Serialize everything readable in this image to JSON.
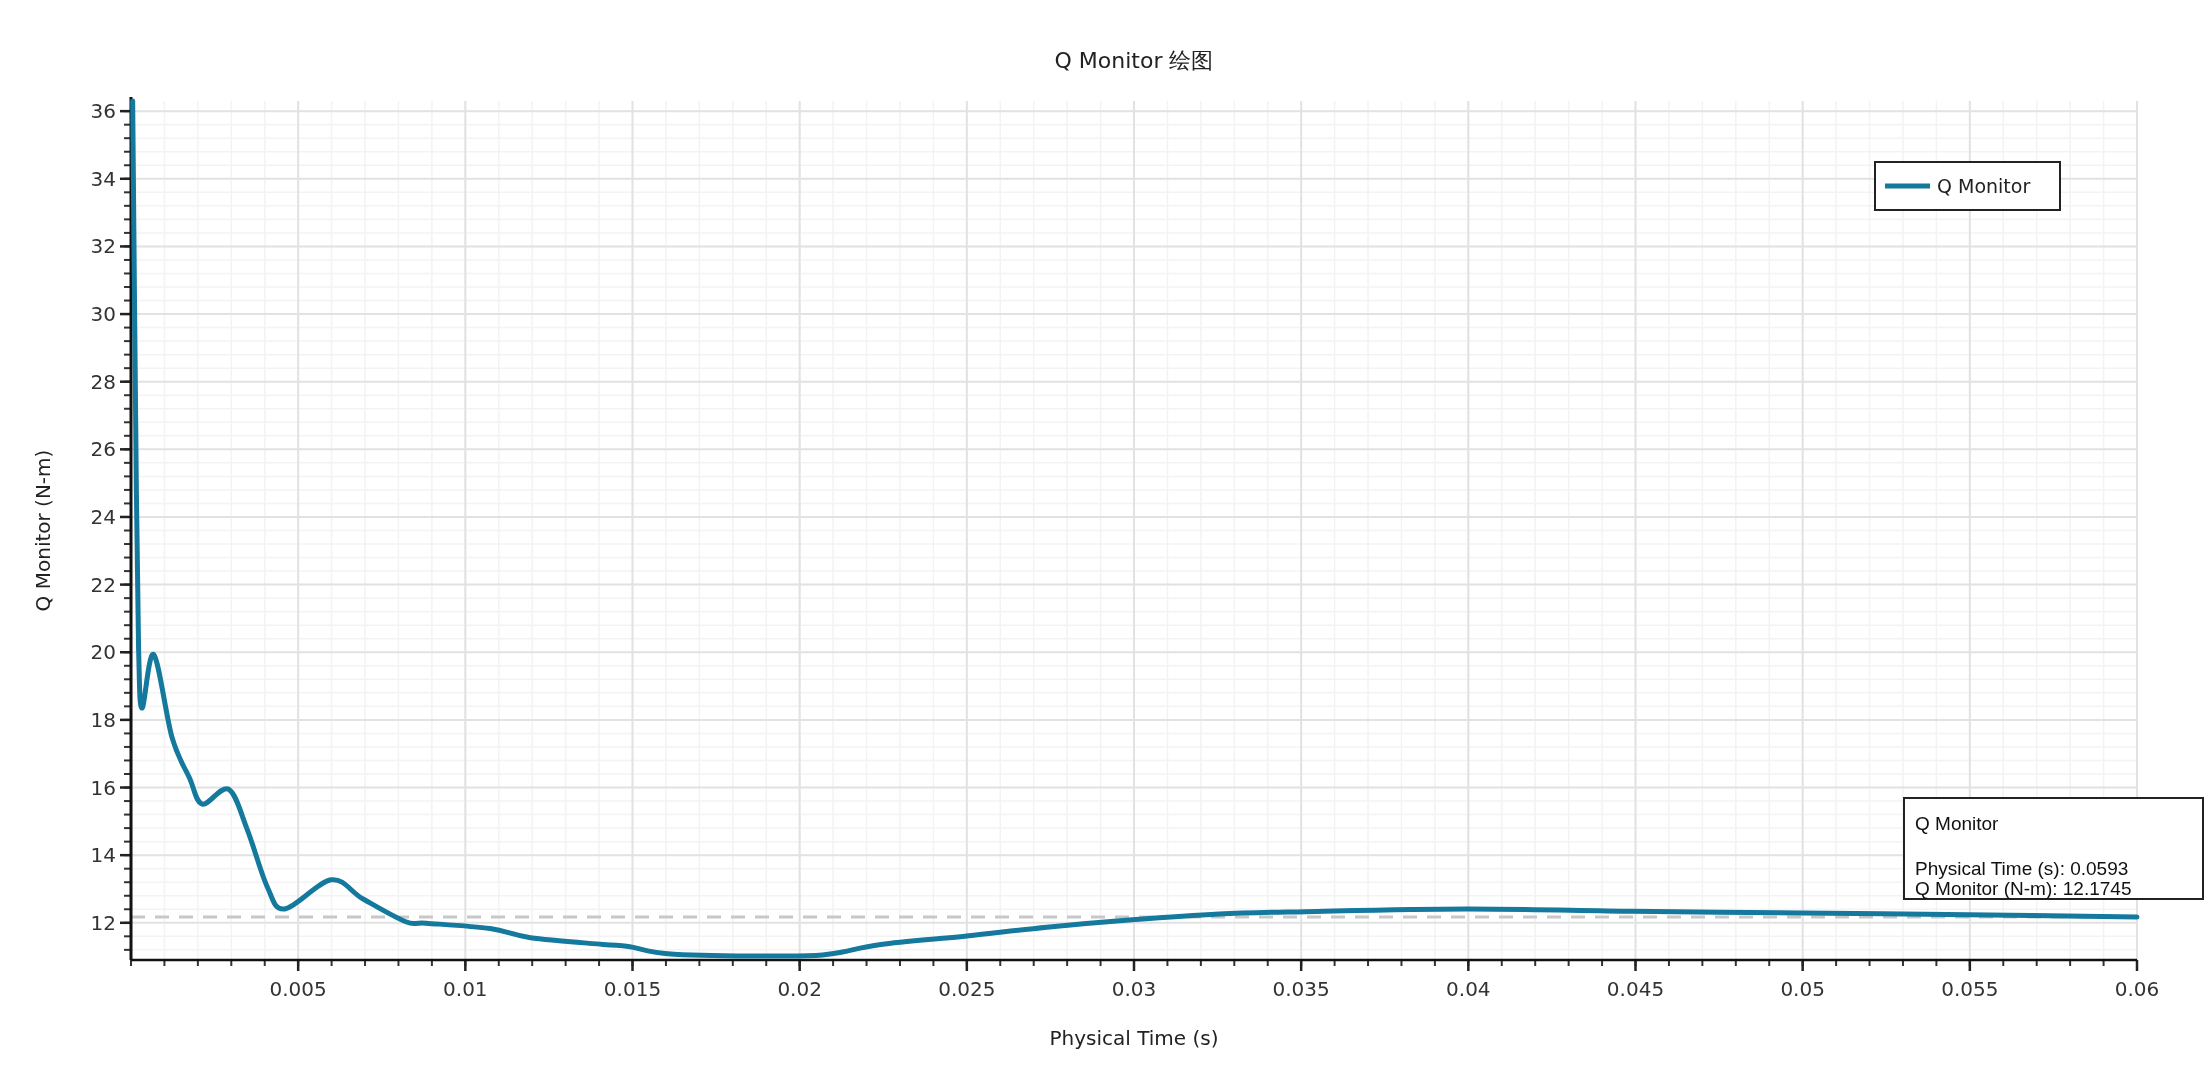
{
  "chart_data": {
    "type": "line",
    "title": "Q Monitor 绘图",
    "xlabel": "Physical Time (s)",
    "ylabel": "Q Monitor (N-m)",
    "xlim": [
      0,
      0.06
    ],
    "ylim": [
      10.9,
      36.3
    ],
    "xticks": [
      0.005,
      0.01,
      0.015,
      0.02,
      0.025,
      0.03,
      0.035,
      0.04,
      0.045,
      0.05,
      0.055,
      0.06
    ],
    "yticks": [
      12,
      14,
      16,
      18,
      20,
      22,
      24,
      26,
      28,
      30,
      32,
      34,
      36
    ],
    "grid": true,
    "legend": "top right",
    "marker": "none",
    "line_style": "solid",
    "series": [
      {
        "name": "Q Monitor",
        "color": "#14799c",
        "x": [
          5e-05,
          0.00016,
          0.00023,
          0.00033,
          0.00068,
          0.00123,
          0.00175,
          0.00213,
          0.00292,
          0.00348,
          0.00408,
          0.0046,
          0.00599,
          0.00693,
          0.00822,
          0.00883,
          0.01074,
          0.01195,
          0.01411,
          0.01488,
          0.01625,
          0.01994,
          0.02106,
          0.02243,
          0.025,
          0.02739,
          0.02995,
          0.03254,
          0.03511,
          0.03996,
          0.04493,
          0.04997,
          0.05495,
          0.06
        ],
        "values": [
          36.3,
          24.8,
          20.0,
          18.35,
          19.93,
          17.47,
          16.28,
          15.51,
          15.95,
          14.75,
          13.05,
          12.41,
          13.27,
          12.71,
          12.03,
          11.99,
          11.83,
          11.56,
          11.36,
          11.3,
          11.07,
          11.02,
          11.1,
          11.36,
          11.61,
          11.87,
          12.09,
          12.26,
          12.33,
          12.41,
          12.34,
          12.29,
          12.24,
          12.17
        ]
      }
    ],
    "ref_lines": [
      {
        "axis": "y",
        "value": 12.1745,
        "color": "#c8c8c8",
        "line_style": "dashed"
      }
    ],
    "annotations": [
      "Q Monitor",
      "Physical Time (s): 0.0593",
      "Q Monitor (N-m): 12.1745"
    ]
  }
}
